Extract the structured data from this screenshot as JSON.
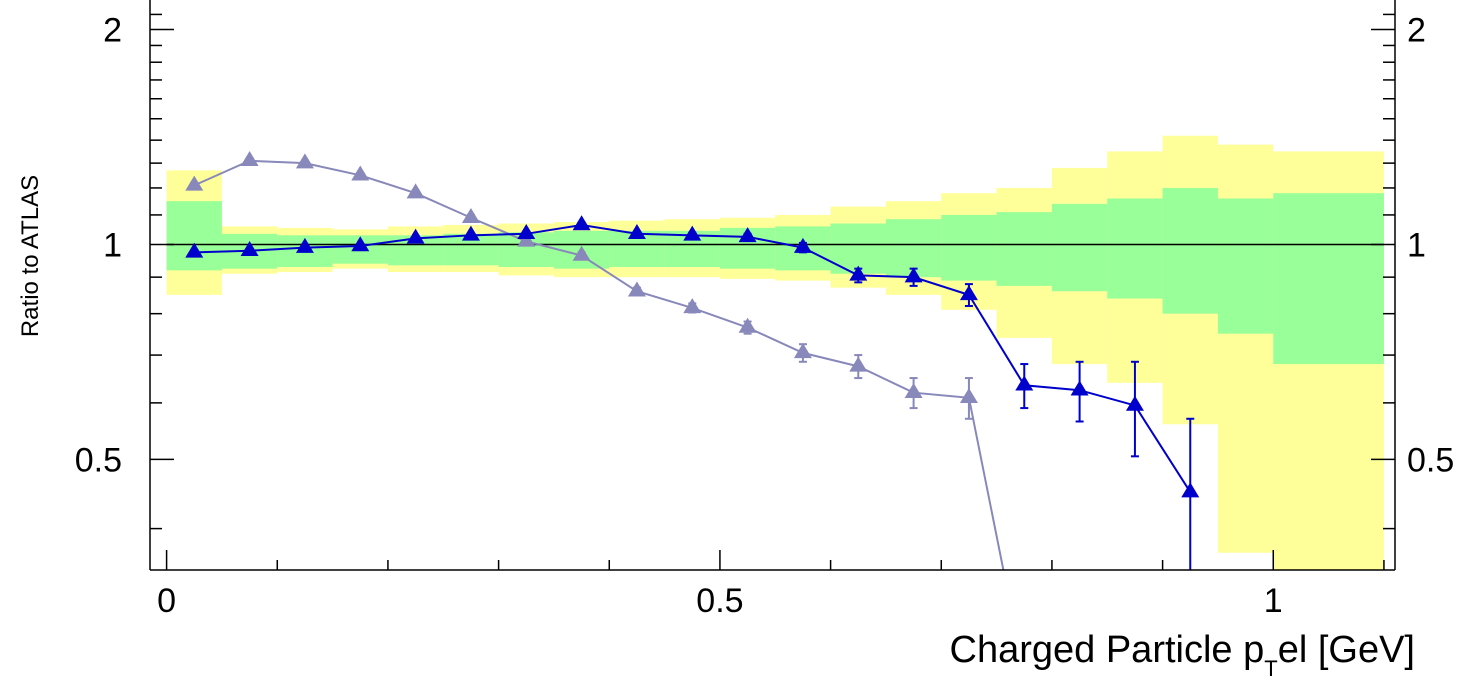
{
  "chart_data": {
    "type": "line",
    "xlabel_main": "Charged Particle p",
    "xlabel_sub": "T",
    "xlabel_rest": "el [GeV]",
    "ylabel": "Ratio to ATLAS",
    "xlim": [
      -0.015,
      1.11
    ],
    "ylim": [
      0.35,
      2.2
    ],
    "y_log_scale": true,
    "x_ticks": [
      0,
      0.5,
      1
    ],
    "x_tick_labels": [
      "0",
      "0.5",
      "1"
    ],
    "y_ticks": [
      0.5,
      1,
      2
    ],
    "y_tick_labels": [
      "0.5",
      "1",
      "2"
    ],
    "reference_line": 1,
    "colors": {
      "outer_band": "#ffff99",
      "inner_band": "#99ff99",
      "series_dark": "#0000cc",
      "series_light": "#8888bb",
      "axis": "#000000"
    },
    "bands": [
      {
        "x0": 0.0,
        "x1": 0.05,
        "inner": [
          0.92,
          1.15
        ],
        "outer": [
          0.85,
          1.27
        ]
      },
      {
        "x0": 0.05,
        "x1": 0.1,
        "inner": [
          0.925,
          1.035
        ],
        "outer": [
          0.91,
          1.06
        ]
      },
      {
        "x0": 0.1,
        "x1": 0.15,
        "inner": [
          0.93,
          1.03
        ],
        "outer": [
          0.915,
          1.055
        ]
      },
      {
        "x0": 0.15,
        "x1": 0.2,
        "inner": [
          0.94,
          1.03
        ],
        "outer": [
          0.925,
          1.05
        ]
      },
      {
        "x0": 0.2,
        "x1": 0.25,
        "inner": [
          0.935,
          1.03
        ],
        "outer": [
          0.915,
          1.06
        ]
      },
      {
        "x0": 0.25,
        "x1": 0.3,
        "inner": [
          0.935,
          1.035
        ],
        "outer": [
          0.915,
          1.065
        ]
      },
      {
        "x0": 0.3,
        "x1": 0.35,
        "inner": [
          0.93,
          1.04
        ],
        "outer": [
          0.905,
          1.07
        ]
      },
      {
        "x0": 0.35,
        "x1": 0.4,
        "inner": [
          0.925,
          1.045
        ],
        "outer": [
          0.9,
          1.075
        ]
      },
      {
        "x0": 0.4,
        "x1": 0.45,
        "inner": [
          0.93,
          1.045
        ],
        "outer": [
          0.9,
          1.08
        ]
      },
      {
        "x0": 0.45,
        "x1": 0.5,
        "inner": [
          0.93,
          1.045
        ],
        "outer": [
          0.9,
          1.085
        ]
      },
      {
        "x0": 0.5,
        "x1": 0.55,
        "inner": [
          0.925,
          1.055
        ],
        "outer": [
          0.895,
          1.09
        ]
      },
      {
        "x0": 0.55,
        "x1": 0.6,
        "inner": [
          0.92,
          1.06
        ],
        "outer": [
          0.89,
          1.1
        ]
      },
      {
        "x0": 0.6,
        "x1": 0.65,
        "inner": [
          0.91,
          1.07
        ],
        "outer": [
          0.87,
          1.13
        ]
      },
      {
        "x0": 0.65,
        "x1": 0.7,
        "inner": [
          0.9,
          1.085
        ],
        "outer": [
          0.85,
          1.15
        ]
      },
      {
        "x0": 0.7,
        "x1": 0.75,
        "inner": [
          0.89,
          1.1
        ],
        "outer": [
          0.81,
          1.18
        ]
      },
      {
        "x0": 0.75,
        "x1": 0.8,
        "inner": [
          0.875,
          1.11
        ],
        "outer": [
          0.74,
          1.2
        ]
      },
      {
        "x0": 0.8,
        "x1": 0.85,
        "inner": [
          0.86,
          1.14
        ],
        "outer": [
          0.68,
          1.28
        ]
      },
      {
        "x0": 0.85,
        "x1": 0.9,
        "inner": [
          0.84,
          1.16
        ],
        "outer": [
          0.64,
          1.35
        ]
      },
      {
        "x0": 0.9,
        "x1": 0.95,
        "inner": [
          0.8,
          1.2
        ],
        "outer": [
          0.56,
          1.42
        ]
      },
      {
        "x0": 0.95,
        "x1": 1.0,
        "inner": [
          0.75,
          1.16
        ],
        "outer": [
          0.37,
          1.38
        ]
      },
      {
        "x0": 1.0,
        "x1": 1.1,
        "inner": [
          0.68,
          1.18
        ],
        "outer": [
          0.35,
          1.35
        ]
      }
    ],
    "series": [
      {
        "color_key": "series_light",
        "x": [
          0.025,
          0.075,
          0.125,
          0.175,
          0.225,
          0.275,
          0.325,
          0.375,
          0.425,
          0.475,
          0.525,
          0.575,
          0.625,
          0.675,
          0.725,
          0.775
        ],
        "y": [
          1.21,
          1.31,
          1.3,
          1.25,
          1.18,
          1.09,
          1.01,
          0.965,
          0.86,
          0.815,
          0.765,
          0.705,
          0.675,
          0.62,
          0.61,
          0.25
        ],
        "err": [
          0.01,
          0.01,
          0.01,
          0.01,
          0.01,
          0.01,
          0.01,
          0.01,
          0.01,
          0.012,
          0.015,
          0.02,
          0.025,
          0.03,
          0.04,
          0.0
        ]
      },
      {
        "color_key": "series_dark",
        "x": [
          0.025,
          0.075,
          0.125,
          0.175,
          0.225,
          0.275,
          0.325,
          0.375,
          0.425,
          0.475,
          0.525,
          0.575,
          0.625,
          0.675,
          0.725,
          0.775,
          0.825,
          0.875,
          0.925
        ],
        "y": [
          0.975,
          0.98,
          0.99,
          0.995,
          1.02,
          1.03,
          1.035,
          1.065,
          1.035,
          1.03,
          1.025,
          0.99,
          0.905,
          0.9,
          0.85,
          0.635,
          0.625,
          0.595,
          0.45
        ],
        "err": [
          0.005,
          0.005,
          0.005,
          0.005,
          0.005,
          0.006,
          0.007,
          0.008,
          0.008,
          0.009,
          0.01,
          0.015,
          0.02,
          0.025,
          0.03,
          0.045,
          0.06,
          0.09,
          0.12
        ]
      }
    ]
  }
}
